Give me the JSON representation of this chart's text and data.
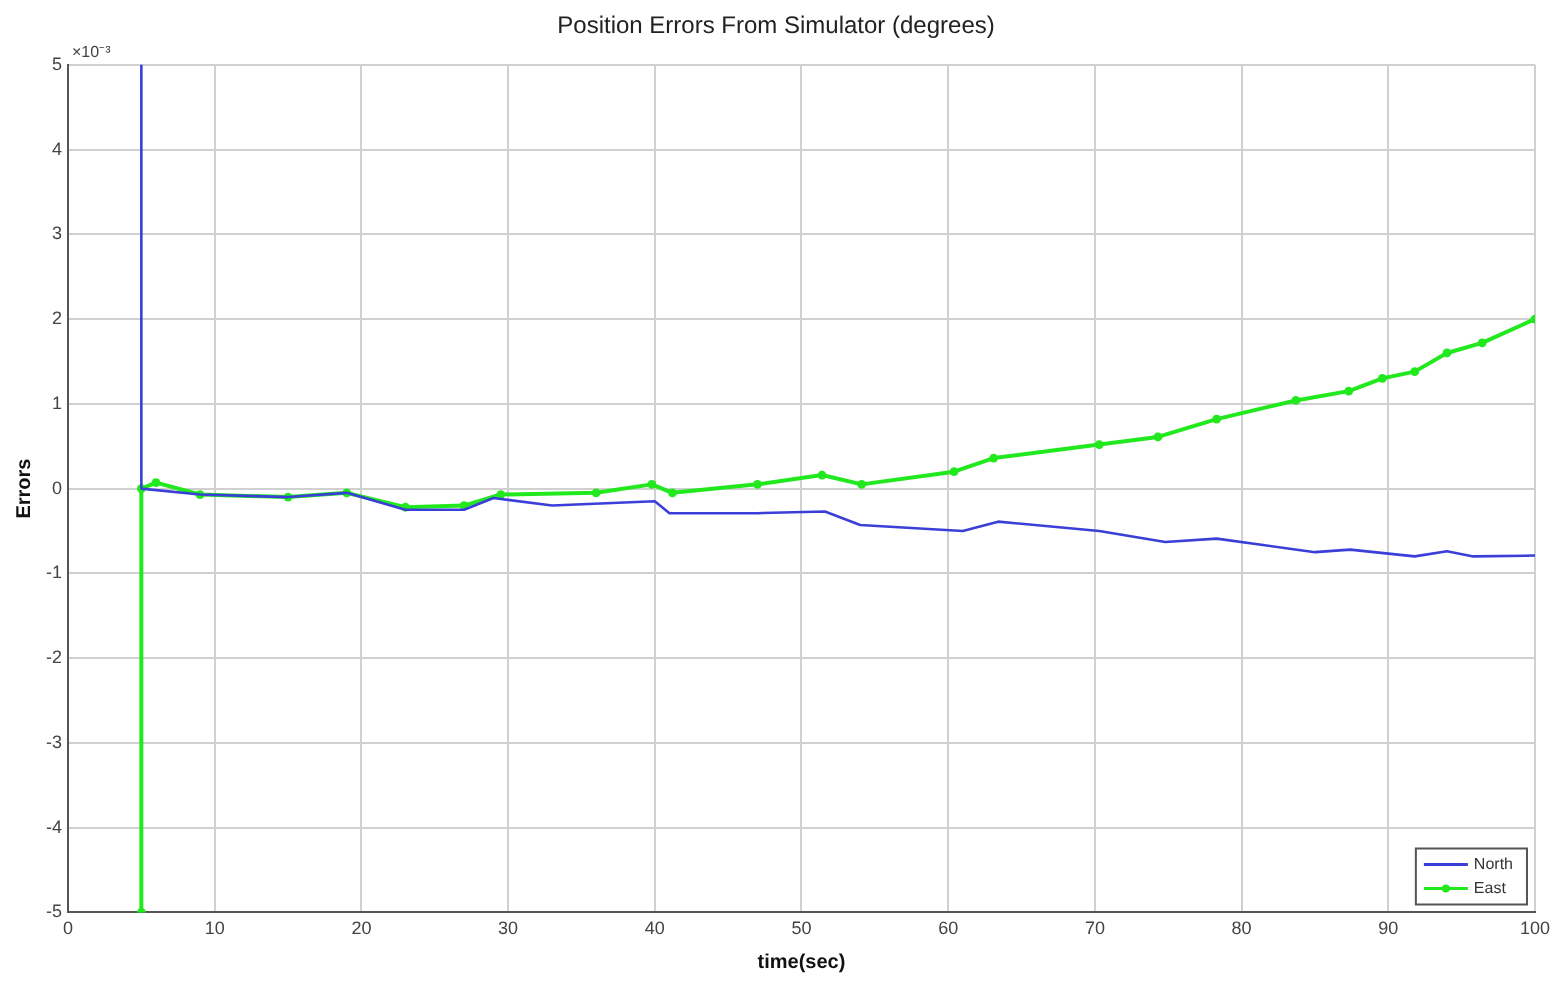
{
  "chart_data": {
    "type": "line",
    "title": "Position Errors From Simulator (degrees)",
    "xlabel": "time(sec)",
    "ylabel": "Errors",
    "annotations": [
      "×10⁻³"
    ],
    "xlim": [
      0,
      100
    ],
    "xticks": [
      0,
      10,
      20,
      30,
      40,
      50,
      60,
      70,
      80,
      90,
      100
    ],
    "ylim": [
      -5,
      5
    ],
    "yticks": [
      -5,
      -4,
      -3,
      -2,
      -1,
      0,
      1,
      2,
      3,
      4,
      5
    ],
    "grid": true,
    "legend": "bottom right",
    "line_style": "solid",
    "series": [
      {
        "name": "North",
        "color": "#3a3fd8",
        "marker": "none",
        "x": [
          5,
          5,
          9,
          15,
          19,
          23,
          27,
          29,
          33,
          40,
          41,
          47,
          51.6,
          54,
          61,
          63.4,
          70.3,
          74.8,
          78.3,
          85,
          87.4,
          91.8,
          94,
          95.8,
          100
        ],
        "values": [
          5,
          0,
          -0.07,
          -0.1,
          -0.05,
          -0.25,
          -0.25,
          -0.11,
          -0.2,
          -0.15,
          -0.29,
          -0.29,
          -0.27,
          -0.43,
          -0.5,
          -0.39,
          -0.5,
          -0.63,
          -0.59,
          -0.75,
          -0.72,
          -0.8,
          -0.74,
          -0.8,
          -0.79
        ]
      },
      {
        "name": "East",
        "color": "#22e81e",
        "marker": "circle",
        "x": [
          5,
          5,
          6,
          9,
          15,
          19,
          23,
          27,
          29.5,
          36,
          39.8,
          41.2,
          47,
          51.4,
          54.1,
          60.4,
          63.1,
          70.3,
          74.3,
          78.3,
          83.7,
          87.3,
          89.6,
          91.8,
          94,
          96.4,
          100
        ],
        "values": [
          -5,
          0,
          0.07,
          -0.07,
          -0.1,
          -0.05,
          -0.22,
          -0.2,
          -0.07,
          -0.05,
          0.05,
          -0.05,
          0.05,
          0.16,
          0.05,
          0.2,
          0.36,
          0.52,
          0.61,
          0.82,
          1.04,
          1.15,
          1.3,
          1.38,
          1.6,
          1.72,
          2.0
        ]
      }
    ]
  }
}
